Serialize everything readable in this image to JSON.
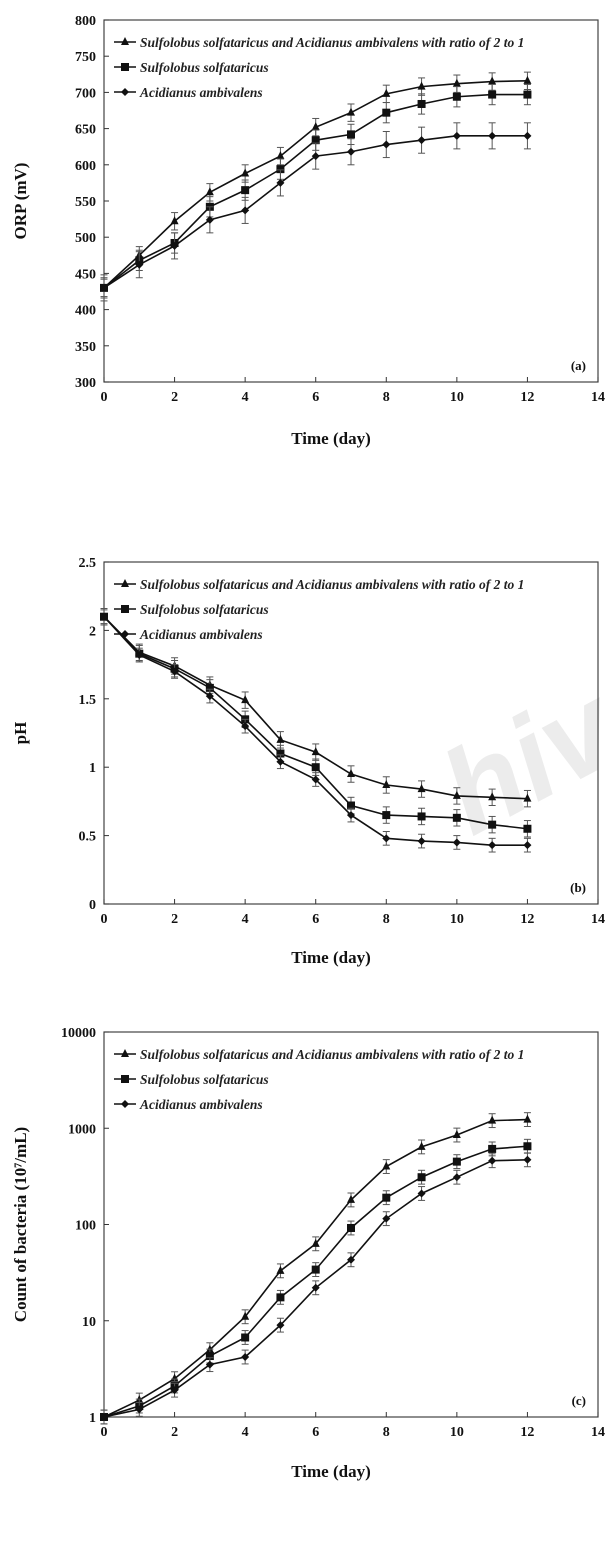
{
  "chart_data": [
    {
      "type": "line",
      "panel_label": "(a)",
      "xlabel": "Time (day)",
      "ylabel": "ORP (mV)",
      "xlim": [
        0,
        14
      ],
      "ylim": [
        300,
        800
      ],
      "xticks": [
        "0",
        "2",
        "4",
        "6",
        "8",
        "10",
        "12",
        "14"
      ],
      "yticks": [
        "300",
        "350",
        "400",
        "450",
        "500",
        "550",
        "600",
        "650",
        "700",
        "750",
        "800"
      ],
      "log_scale": false,
      "grid": false,
      "legend_position": "top-left",
      "x": [
        0,
        1,
        2,
        3,
        4,
        5,
        6,
        7,
        8,
        9,
        10,
        11,
        12
      ],
      "series": [
        {
          "name": "Sulfolobus solfataricus and Acidianus ambivalens with ratio of 2 to 1",
          "marker": "triangle",
          "values": [
            430,
            475,
            522,
            562,
            588,
            612,
            652,
            672,
            698,
            708,
            712,
            715,
            716
          ],
          "error": 12
        },
        {
          "name": "Sulfolobus solfataricus",
          "marker": "square",
          "values": [
            430,
            468,
            492,
            542,
            565,
            594,
            634,
            642,
            672,
            684,
            694,
            697,
            697
          ],
          "error": 14
        },
        {
          "name": "Acidianus ambivalens",
          "marker": "diamond",
          "values": [
            430,
            462,
            488,
            524,
            537,
            575,
            612,
            618,
            628,
            634,
            640,
            640,
            640
          ],
          "error": 18
        }
      ]
    },
    {
      "type": "line",
      "panel_label": "(b)",
      "xlabel": "Time (day)",
      "ylabel": "pH",
      "xlim": [
        0,
        14
      ],
      "ylim": [
        0,
        2.5
      ],
      "xticks": [
        "0",
        "2",
        "4",
        "6",
        "8",
        "10",
        "12",
        "14"
      ],
      "yticks": [
        "0",
        "0.5",
        "1",
        "1.5",
        "2",
        "2.5"
      ],
      "log_scale": false,
      "grid": false,
      "legend_position": "top-left",
      "x": [
        0,
        1,
        2,
        3,
        4,
        5,
        6,
        7,
        8,
        9,
        10,
        11,
        12
      ],
      "series": [
        {
          "name": "Sulfolobus solfataricus and Acidianus ambivalens with ratio of 2 to 1",
          "marker": "triangle",
          "values": [
            2.1,
            1.84,
            1.74,
            1.6,
            1.49,
            1.2,
            1.11,
            0.95,
            0.87,
            0.84,
            0.79,
            0.78,
            0.77
          ],
          "error": 0.06
        },
        {
          "name": "Sulfolobus solfataricus",
          "marker": "square",
          "values": [
            2.1,
            1.83,
            1.72,
            1.58,
            1.35,
            1.1,
            1.0,
            0.72,
            0.65,
            0.64,
            0.63,
            0.58,
            0.55
          ],
          "error": 0.06
        },
        {
          "name": "Acidianus ambivalens",
          "marker": "diamond",
          "values": [
            2.1,
            1.82,
            1.7,
            1.52,
            1.3,
            1.04,
            0.91,
            0.65,
            0.48,
            0.46,
            0.45,
            0.43,
            0.43
          ],
          "error": 0.05
        }
      ]
    },
    {
      "type": "line",
      "panel_label": "(c)",
      "xlabel": "Time (day)",
      "ylabel": "Count of bacteria (10⁷/mL)",
      "xlim": [
        0,
        14
      ],
      "ylim": [
        1,
        10000
      ],
      "xticks": [
        "0",
        "2",
        "4",
        "6",
        "8",
        "10",
        "12",
        "14"
      ],
      "yticks": [
        "1",
        "10",
        "100",
        "1000",
        "10000"
      ],
      "log_scale": true,
      "grid": false,
      "legend_position": "top-left",
      "x": [
        0,
        1,
        2,
        3,
        4,
        5,
        6,
        7,
        8,
        9,
        10,
        11,
        12
      ],
      "series": [
        {
          "name": "Sulfolobus solfataricus and Acidianus ambivalens with ratio of 2 to 1",
          "marker": "triangle",
          "values": [
            1.0,
            1.5,
            2.5,
            5,
            11,
            33,
            63,
            180,
            400,
            640,
            850,
            1200,
            1230
          ],
          "error_factor": 1.18
        },
        {
          "name": "Sulfolobus solfataricus",
          "marker": "square",
          "values": [
            1.0,
            1.3,
            2.1,
            4.3,
            6.7,
            17.5,
            34,
            92,
            190,
            310,
            450,
            610,
            650
          ],
          "error_factor": 1.18
        },
        {
          "name": "Acidianus ambivalens",
          "marker": "diamond",
          "values": [
            1.0,
            1.2,
            1.9,
            3.5,
            4.2,
            9,
            22,
            43,
            115,
            210,
            310,
            460,
            470
          ],
          "error_factor": 1.18
        }
      ]
    }
  ],
  "watermark": "hiv"
}
